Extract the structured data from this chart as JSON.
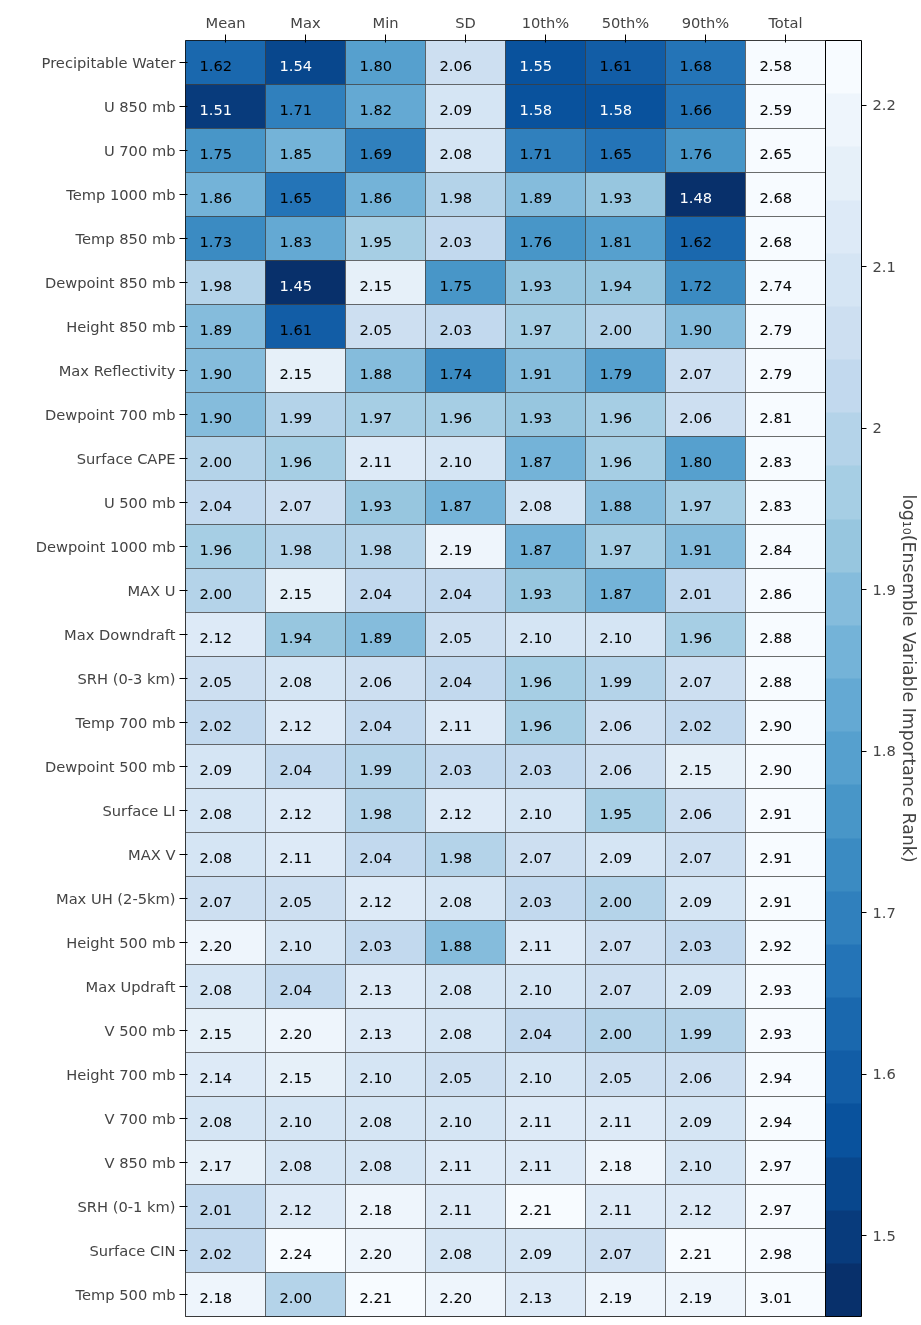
{
  "chart_data": {
    "type": "heatmap",
    "categories": [
      "Mean",
      "Max",
      "Min",
      "SD",
      "10th%",
      "50th%",
      "90th%",
      "Total"
    ],
    "y_categories": [
      "Precipitable Water",
      "U 850 mb",
      "U 700 mb",
      "Temp 1000 mb",
      "Temp 850 mb",
      "Dewpoint 850 mb",
      "Height 850 mb",
      "Max Reflectivity",
      "Dewpoint 700 mb",
      "Surface CAPE",
      "U 500 mb",
      "Dewpoint 1000 mb",
      "MAX U",
      "Max Downdraft",
      "SRH (0-3 km)",
      "Temp 700 mb",
      "Dewpoint 500 mb",
      "Surface LI",
      "MAX V",
      "Max UH (2-5km)",
      "Height 500 mb",
      "Max Updraft",
      "V 500 mb",
      "Height 700 mb",
      "V 700 mb",
      "V 850 mb",
      "SRH (0-1 km)",
      "Surface CIN",
      "Temp 500 mb"
    ],
    "cells": [
      [
        1.62,
        1.54,
        1.8,
        2.06,
        1.55,
        1.61,
        1.68,
        2.58
      ],
      [
        1.51,
        1.71,
        1.82,
        2.09,
        1.58,
        1.58,
        1.66,
        2.59
      ],
      [
        1.75,
        1.85,
        1.69,
        2.08,
        1.71,
        1.65,
        1.76,
        2.65
      ],
      [
        1.86,
        1.65,
        1.86,
        1.98,
        1.89,
        1.93,
        1.48,
        2.68
      ],
      [
        1.73,
        1.83,
        1.95,
        2.03,
        1.76,
        1.81,
        1.62,
        2.68
      ],
      [
        1.98,
        1.45,
        2.15,
        1.75,
        1.93,
        1.94,
        1.72,
        2.74
      ],
      [
        1.89,
        1.61,
        2.05,
        2.03,
        1.97,
        2.0,
        1.9,
        2.79
      ],
      [
        1.9,
        2.15,
        1.88,
        1.74,
        1.91,
        1.79,
        2.07,
        2.79
      ],
      [
        1.9,
        1.99,
        1.97,
        1.96,
        1.93,
        1.96,
        2.06,
        2.81
      ],
      [
        2.0,
        1.96,
        2.11,
        2.1,
        1.87,
        1.96,
        1.8,
        2.83
      ],
      [
        2.04,
        2.07,
        1.93,
        1.87,
        2.08,
        1.88,
        1.97,
        2.83
      ],
      [
        1.96,
        1.98,
        1.98,
        2.19,
        1.87,
        1.97,
        1.91,
        2.84
      ],
      [
        2.0,
        2.15,
        2.04,
        2.04,
        1.93,
        1.87,
        2.01,
        2.86
      ],
      [
        2.12,
        1.94,
        1.89,
        2.05,
        2.1,
        2.1,
        1.96,
        2.88
      ],
      [
        2.05,
        2.08,
        2.06,
        2.04,
        1.96,
        1.99,
        2.07,
        2.88
      ],
      [
        2.02,
        2.12,
        2.04,
        2.11,
        1.96,
        2.06,
        2.02,
        2.9
      ],
      [
        2.09,
        2.04,
        1.99,
        2.03,
        2.03,
        2.06,
        2.15,
        2.9
      ],
      [
        2.08,
        2.12,
        1.98,
        2.12,
        2.1,
        1.95,
        2.06,
        2.91
      ],
      [
        2.08,
        2.11,
        2.04,
        1.98,
        2.07,
        2.09,
        2.07,
        2.91
      ],
      [
        2.07,
        2.05,
        2.12,
        2.08,
        2.03,
        2.0,
        2.09,
        2.91
      ],
      [
        2.2,
        2.1,
        2.03,
        1.88,
        2.11,
        2.07,
        2.03,
        2.92
      ],
      [
        2.08,
        2.04,
        2.13,
        2.08,
        2.1,
        2.07,
        2.09,
        2.93
      ],
      [
        2.15,
        2.2,
        2.13,
        2.08,
        2.04,
        2.0,
        1.99,
        2.93
      ],
      [
        2.14,
        2.15,
        2.1,
        2.05,
        2.1,
        2.05,
        2.06,
        2.94
      ],
      [
        2.08,
        2.1,
        2.08,
        2.1,
        2.11,
        2.11,
        2.09,
        2.94
      ],
      [
        2.17,
        2.08,
        2.08,
        2.11,
        2.11,
        2.18,
        2.1,
        2.97
      ],
      [
        2.01,
        2.12,
        2.18,
        2.11,
        2.21,
        2.11,
        2.12,
        2.97
      ],
      [
        2.02,
        2.24,
        2.2,
        2.08,
        2.09,
        2.07,
        2.21,
        2.98
      ],
      [
        2.18,
        2.0,
        2.21,
        2.2,
        2.13,
        2.19,
        2.19,
        3.01
      ]
    ],
    "cell_labels": [
      [
        "1.62",
        "1.54",
        "1.80",
        "2.06",
        "1.55",
        "1.61",
        "1.68",
        "2.58"
      ],
      [
        "1.51",
        "1.71",
        "1.82",
        "2.09",
        "1.58",
        "1.58",
        "1.66",
        "2.59"
      ],
      [
        "1.75",
        "1.85",
        "1.69",
        "2.08",
        "1.71",
        "1.65",
        "1.76",
        "2.65"
      ],
      [
        "1.86",
        "1.65",
        "1.86",
        "1.98",
        "1.89",
        "1.93",
        "1.48",
        "2.68"
      ],
      [
        "1.73",
        "1.83",
        "1.95",
        "2.03",
        "1.76",
        "1.81",
        "1.62",
        "2.68"
      ],
      [
        "1.98",
        "1.45",
        "2.15",
        "1.75",
        "1.93",
        "1.94",
        "1.72",
        "2.74"
      ],
      [
        "1.89",
        "1.61",
        "2.05",
        "2.03",
        "1.97",
        "2.00",
        "1.90",
        "2.79"
      ],
      [
        "1.90",
        "2.15",
        "1.88",
        "1.74",
        "1.91",
        "1.79",
        "2.07",
        "2.79"
      ],
      [
        "1.90",
        "1.99",
        "1.97",
        "1.96",
        "1.93",
        "1.96",
        "2.06",
        "2.81"
      ],
      [
        "2.00",
        "1.96",
        "2.11",
        "2.10",
        "1.87",
        "1.96",
        "1.80",
        "2.83"
      ],
      [
        "2.04",
        "2.07",
        "1.93",
        "1.87",
        "2.08",
        "1.88",
        "1.97",
        "2.83"
      ],
      [
        "1.96",
        "1.98",
        "1.98",
        "2.19",
        "1.87",
        "1.97",
        "1.91",
        "2.84"
      ],
      [
        "2.00",
        "2.15",
        "2.04",
        "2.04",
        "1.93",
        "1.87",
        "2.01",
        "2.86"
      ],
      [
        "2.12",
        "1.94",
        "1.89",
        "2.05",
        "2.10",
        "2.10",
        "1.96",
        "2.88"
      ],
      [
        "2.05",
        "2.08",
        "2.06",
        "2.04",
        "1.96",
        "1.99",
        "2.07",
        "2.88"
      ],
      [
        "2.02",
        "2.12",
        "2.04",
        "2.11",
        "1.96",
        "2.06",
        "2.02",
        "2.90"
      ],
      [
        "2.09",
        "2.04",
        "1.99",
        "2.03",
        "2.03",
        "2.06",
        "2.15",
        "2.90"
      ],
      [
        "2.08",
        "2.12",
        "1.98",
        "2.12",
        "2.10",
        "1.95",
        "2.06",
        "2.91"
      ],
      [
        "2.08",
        "2.11",
        "2.04",
        "1.98",
        "2.07",
        "2.09",
        "2.07",
        "2.91"
      ],
      [
        "2.07",
        "2.05",
        "2.12",
        "2.08",
        "2.03",
        "2.00",
        "2.09",
        "2.91"
      ],
      [
        "2.20",
        "2.10",
        "2.03",
        "1.88",
        "2.11",
        "2.07",
        "2.03",
        "2.92"
      ],
      [
        "2.08",
        "2.04",
        "2.13",
        "2.08",
        "2.10",
        "2.07",
        "2.09",
        "2.93"
      ],
      [
        "2.15",
        "2.20",
        "2.13",
        "2.08",
        "2.04",
        "2.00",
        "1.99",
        "2.93"
      ],
      [
        "2.14",
        "2.15",
        "2.10",
        "2.05",
        "2.10",
        "2.05",
        "2.06",
        "2.94"
      ],
      [
        "2.08",
        "2.10",
        "2.08",
        "2.10",
        "2.11",
        "2.11",
        "2.09",
        "2.94"
      ],
      [
        "2.17",
        "2.08",
        "2.08",
        "2.11",
        "2.11",
        "2.18",
        "2.10",
        "2.97"
      ],
      [
        "2.01",
        "2.12",
        "2.18",
        "2.11",
        "2.21",
        "2.11",
        "2.12",
        "2.97"
      ],
      [
        "2.02",
        "2.24",
        "2.20",
        "2.08",
        "2.09",
        "2.07",
        "2.21",
        "2.98"
      ],
      [
        "2.18",
        "2.00",
        "2.21",
        "2.20",
        "2.13",
        "2.19",
        "2.19",
        "3.01"
      ]
    ],
    "clabel": "log₁₀(Ensemble Variable Importance Rank)",
    "clim": [
      1.45,
      2.24
    ],
    "cticks": [
      1.5,
      1.6,
      1.7,
      1.8,
      1.9,
      2.0,
      2.1,
      2.2
    ]
  }
}
